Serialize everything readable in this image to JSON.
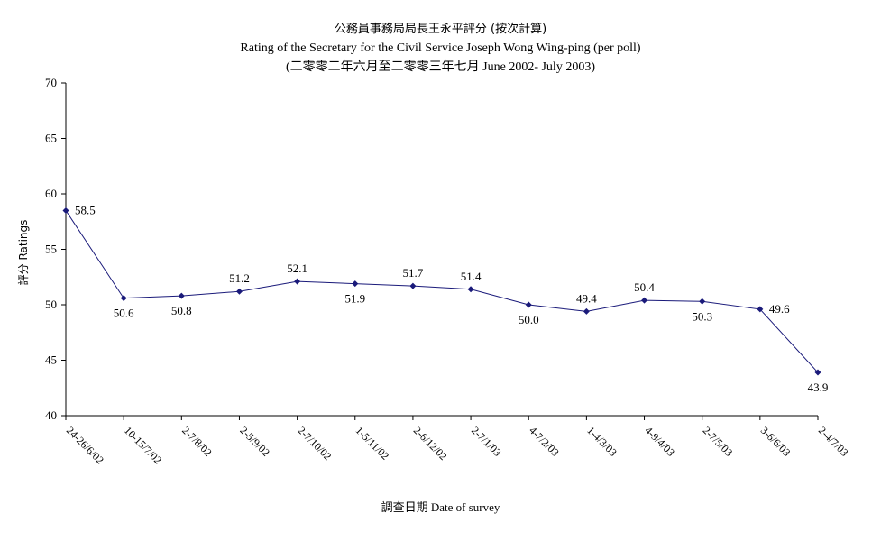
{
  "chart_data": {
    "type": "line",
    "title_zh": "公務員事務局局長王永平評分 (按次計算)",
    "title": "Rating of the Secretary for the Civil Service Joseph Wong Wing-ping  (per poll)",
    "subtitle": "(二零零二年六月至二零零三年七月 June 2002- July 2003)",
    "xlabel": "調查日期 Date of survey",
    "ylabel": "評分 Ratings",
    "ylim": [
      40,
      70
    ],
    "yticks": [
      40,
      45,
      50,
      55,
      60,
      65,
      70
    ],
    "grid": false,
    "legend": "none",
    "categories": [
      "24-26/6/02",
      "10-15/7/02",
      "2-7/8/02",
      "2-5/9/02",
      "2-7/10/02",
      "1-5/11/02",
      "2-6/12/02",
      "2-7/1/03",
      "4-7/2/03",
      "1-4/3/03",
      "4-9/4/03",
      "2-7/5/03",
      "3-6/6/03",
      "2-4/7/03"
    ],
    "series": [
      {
        "values": [
          58.5,
          50.6,
          50.8,
          51.2,
          52.1,
          51.9,
          51.7,
          51.4,
          50.0,
          49.4,
          50.4,
          50.3,
          49.6,
          43.9
        ],
        "value_labels": [
          "58.5",
          "50.6",
          "50.8",
          "51.2",
          "52.1",
          "51.9",
          "51.7",
          "51.4",
          "50.0",
          "49.4",
          "50.4",
          "50.3",
          "49.6",
          "43.9"
        ],
        "label_position": [
          "right",
          "below",
          "below",
          "above",
          "above",
          "below",
          "above",
          "above",
          "below",
          "above",
          "above",
          "below",
          "right",
          "below"
        ],
        "color": "#1a1a7a"
      }
    ]
  }
}
